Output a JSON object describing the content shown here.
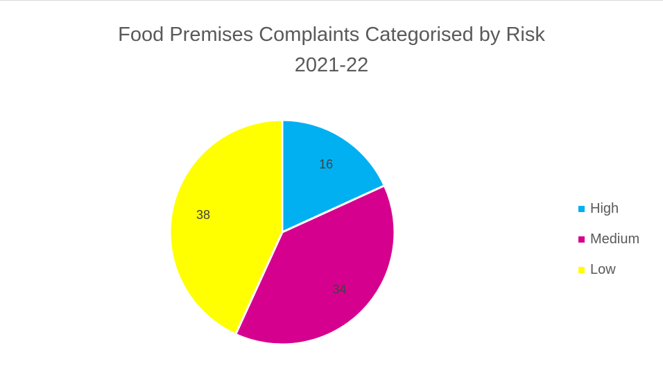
{
  "chart_data": {
    "type": "pie",
    "title": "Food Premises Complaints Categorised by Risk",
    "subtitle": "2021-22",
    "categories": [
      "High",
      "Medium",
      "Low"
    ],
    "values": [
      16,
      34,
      38
    ],
    "colors": [
      "#00b0f0",
      "#d6008f",
      "#ffff00"
    ],
    "legend_position": "right",
    "data_labels": [
      "16",
      "34",
      "38"
    ]
  },
  "legend": {
    "items": [
      {
        "label": "High",
        "color": "#00b0f0"
      },
      {
        "label": "Medium",
        "color": "#d6008f"
      },
      {
        "label": "Low",
        "color": "#ffff00"
      }
    ]
  }
}
